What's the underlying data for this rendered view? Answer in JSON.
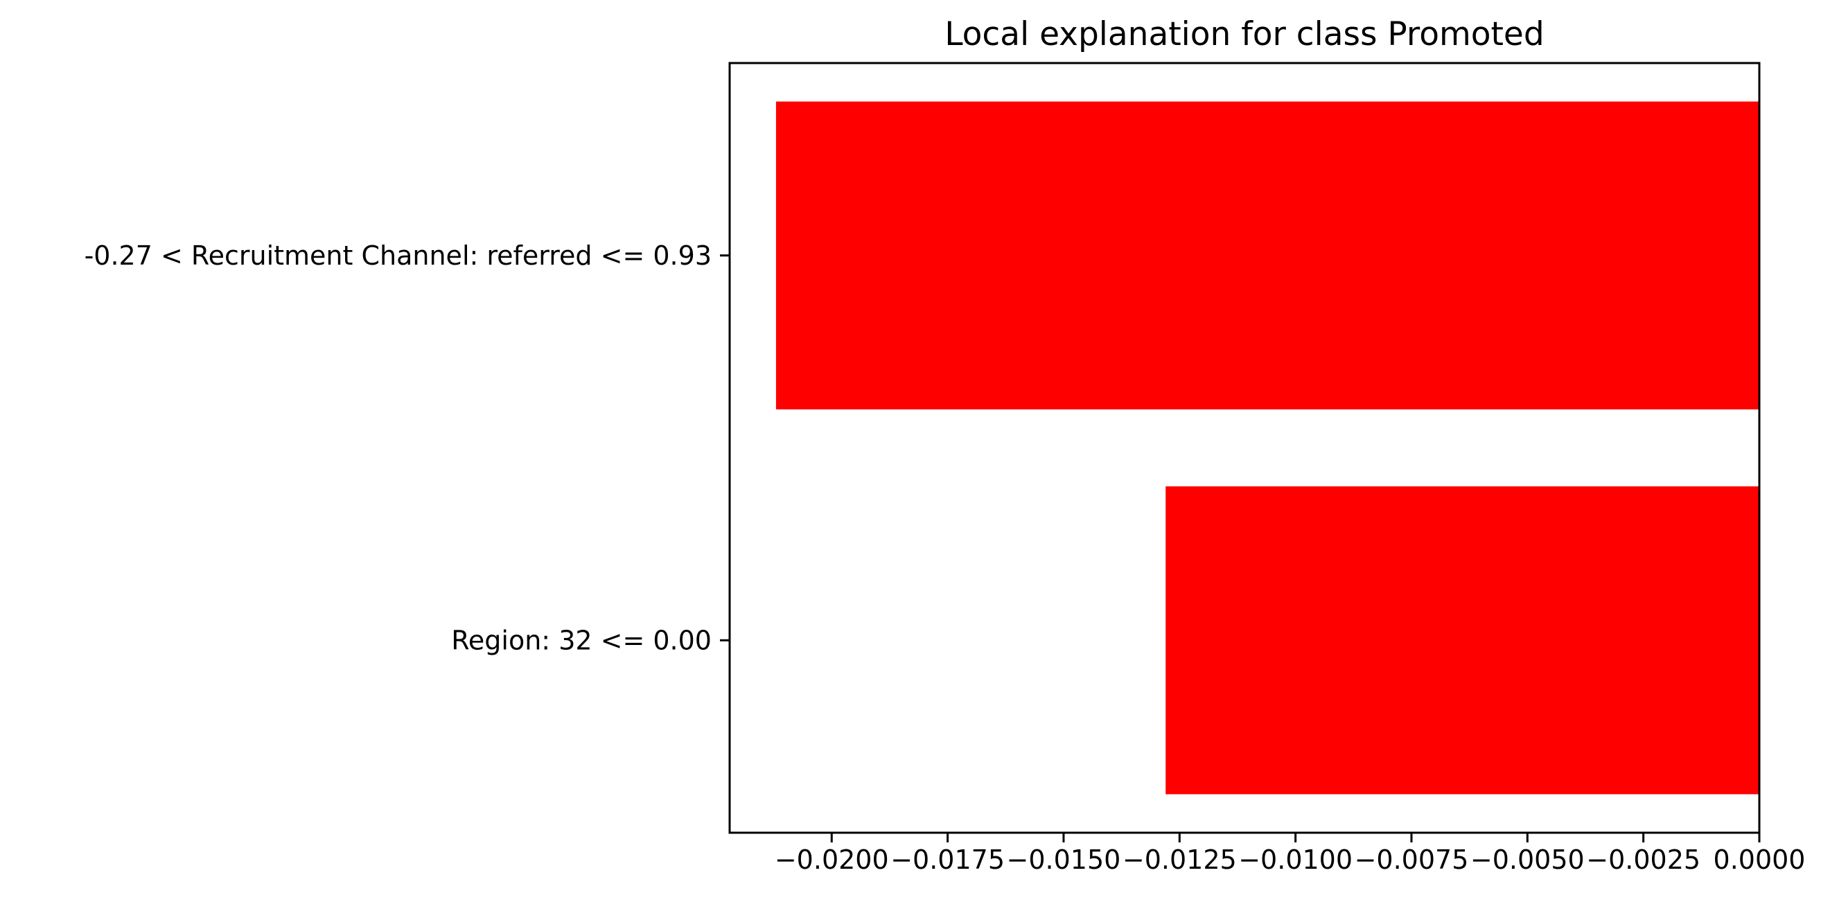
{
  "chart_data": {
    "type": "bar",
    "orientation": "horizontal",
    "title": "Local explanation for class Promoted",
    "xlabel": "",
    "ylabel": "",
    "xlim": [
      -0.0222,
      0.0
    ],
    "categories": [
      "-0.27 < Recruitment Channel: referred <= 0.93",
      "Region: 32 <= 0.00"
    ],
    "values": [
      -0.0212,
      -0.0128
    ],
    "bar_color": "#ff0000",
    "xticks": [
      -0.02,
      -0.0175,
      -0.015,
      -0.0125,
      -0.01,
      -0.0075,
      -0.005,
      -0.0025,
      0.0
    ],
    "xtick_labels": [
      "−0.0200",
      "−0.0175",
      "−0.0150",
      "−0.0125",
      "−0.0100",
      "−0.0075",
      "−0.0050",
      "−0.0025",
      "0.0000"
    ],
    "grid": false,
    "legend": "none"
  }
}
